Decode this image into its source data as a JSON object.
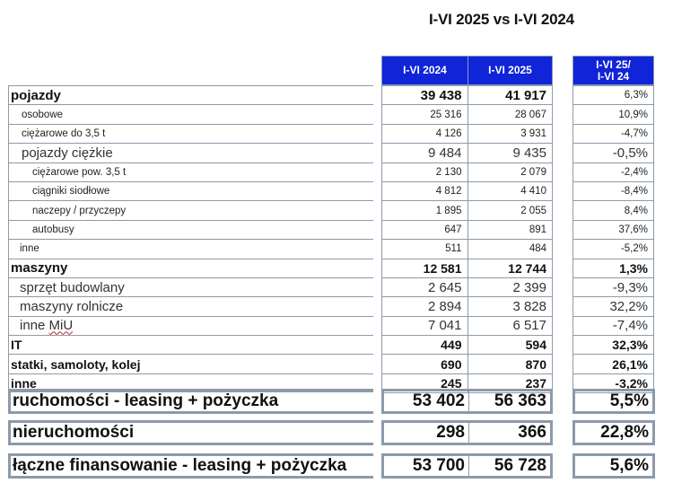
{
  "title": "I-VI 2025 vs I-VI 2024",
  "headers": {
    "col1": "I-VI 2024",
    "col2": "I-VI 2025",
    "col3_line1": "I-VI 25/",
    "col3_line2": "I-VI 24"
  },
  "rows": [
    {
      "label": "pojazdy",
      "v2024": "39 438",
      "v2025": "41 917",
      "change": "6,3%"
    },
    {
      "label": "osobowe",
      "v2024": "25 316",
      "v2025": "28 067",
      "change": "10,9%"
    },
    {
      "label": "ciężarowe do 3,5 t",
      "v2024": "4 126",
      "v2025": "3 931",
      "change": "-4,7%"
    },
    {
      "label": "pojazdy ciężkie",
      "v2024": "9 484",
      "v2025": "9 435",
      "change": "-0,5%"
    },
    {
      "label": "ciężarowe pow. 3,5 t",
      "v2024": "2 130",
      "v2025": "2 079",
      "change": "-2,4%"
    },
    {
      "label": "ciągniki siodłowe",
      "v2024": "4 812",
      "v2025": "4 410",
      "change": "-8,4%"
    },
    {
      "label": "naczepy / przyczepy",
      "v2024": "1 895",
      "v2025": "2 055",
      "change": "8,4%"
    },
    {
      "label": "autobusy",
      "v2024": "647",
      "v2025": "891",
      "change": "37,6%"
    },
    {
      "label": "inne",
      "v2024": "511",
      "v2025": "484",
      "change": "-5,2%"
    },
    {
      "label": "maszyny",
      "v2024": "12 581",
      "v2025": "12 744",
      "change": "1,3%"
    },
    {
      "label": "sprzęt budowlany",
      "v2024": "2 645",
      "v2025": "2 399",
      "change": "-9,3%"
    },
    {
      "label": "maszyny rolnicze",
      "v2024": "2 894",
      "v2025": "3 828",
      "change": "32,2%"
    },
    {
      "label_prefix": "inne ",
      "label_flagged": "MiU",
      "v2024": "7 041",
      "v2025": "6 517",
      "change": "-7,4%"
    },
    {
      "label": "IT",
      "v2024": "449",
      "v2025": "594",
      "change": "32,3%"
    },
    {
      "label": "statki, samoloty, kolej",
      "v2024": "690",
      "v2025": "870",
      "change": "26,1%"
    },
    {
      "label": "inne",
      "v2024": "245",
      "v2025": "237",
      "change": "-3,2%"
    }
  ],
  "summary": [
    {
      "label": "ruchomości - leasing + pożyczka",
      "v2024": "53 402",
      "v2025": "56 363",
      "change": "5,5%"
    },
    {
      "label": "nieruchomości",
      "v2024": "298",
      "v2025": "366",
      "change": "22,8%"
    },
    {
      "label": "łączne finansowanie - leasing + pożyczka",
      "v2024": "53 700",
      "v2025": "56 728",
      "change": "5,6%"
    }
  ],
  "colors": {
    "header_bg": "#1024d8",
    "header_text": "#ffffff",
    "border": "#8c9aaa"
  }
}
